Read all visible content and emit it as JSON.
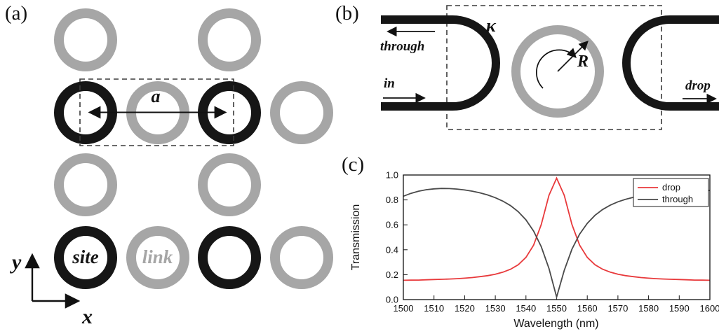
{
  "figure": {
    "panel_a_tag": "(a)",
    "panel_b_tag": "(b)",
    "panel_c_tag": "(c)"
  },
  "panel_a": {
    "lattice_constant_label": "a",
    "x_axis_label": "x",
    "y_axis_label": "y",
    "site_label": "site",
    "link_label": "link",
    "colors": {
      "site": "#161616",
      "link": "#a6a6a6"
    },
    "rings": [
      {
        "col": 0,
        "row": 0,
        "type": "link"
      },
      {
        "col": 2,
        "row": 0,
        "type": "link"
      },
      {
        "col": 0,
        "row": 1,
        "type": "site"
      },
      {
        "col": 1,
        "row": 1,
        "type": "link"
      },
      {
        "col": 2,
        "row": 1,
        "type": "site"
      },
      {
        "col": 3,
        "row": 1,
        "type": "link"
      },
      {
        "col": 0,
        "row": 2,
        "type": "link"
      },
      {
        "col": 2,
        "row": 2,
        "type": "link"
      },
      {
        "col": 0,
        "row": 3,
        "type": "site",
        "label": "site"
      },
      {
        "col": 1,
        "row": 3,
        "type": "link",
        "label": "link"
      },
      {
        "col": 2,
        "row": 3,
        "type": "site"
      },
      {
        "col": 3,
        "row": 3,
        "type": "link"
      }
    ]
  },
  "panel_b": {
    "through_label": "through",
    "in_label": "in",
    "drop_label": "drop",
    "kappa_label": "κ",
    "radius_label": "R",
    "waveguide_color": "#161616",
    "ring_color": "#a6a6a6"
  },
  "chart_data": {
    "type": "line",
    "title": "",
    "xlabel": "Wavelength (nm)",
    "ylabel": "Transmission",
    "xlim": [
      1500,
      1600
    ],
    "ylim": [
      0.0,
      1.0
    ],
    "grid": false,
    "legend_position": "top-right",
    "x_ticks": [
      1500,
      1510,
      1520,
      1530,
      1540,
      1550,
      1560,
      1570,
      1580,
      1590,
      1600
    ],
    "y_ticks": [
      "0.0",
      "0.2",
      "0.4",
      "0.6",
      "0.8",
      "1.0"
    ],
    "x": [
      1500,
      1502.5,
      1505,
      1507.5,
      1510,
      1512.5,
      1515,
      1517.5,
      1520,
      1522.5,
      1525,
      1527.5,
      1530,
      1532.5,
      1535,
      1537.5,
      1540,
      1542.5,
      1545,
      1547.5,
      1550,
      1552.5,
      1555,
      1557.5,
      1560,
      1562.5,
      1565,
      1567.5,
      1570,
      1572.5,
      1575,
      1577.5,
      1580,
      1582.5,
      1585,
      1587.5,
      1590,
      1592.5,
      1595,
      1597.5,
      1600
    ],
    "series": [
      {
        "name": "drop",
        "color": "#e8393b",
        "values": [
          0.155,
          0.156,
          0.157,
          0.159,
          0.161,
          0.163,
          0.165,
          0.168,
          0.172,
          0.177,
          0.184,
          0.192,
          0.204,
          0.22,
          0.244,
          0.28,
          0.339,
          0.437,
          0.602,
          0.837,
          0.975,
          0.837,
          0.602,
          0.437,
          0.339,
          0.28,
          0.244,
          0.22,
          0.204,
          0.192,
          0.184,
          0.177,
          0.172,
          0.168,
          0.165,
          0.163,
          0.161,
          0.159,
          0.157,
          0.156,
          0.155
        ]
      },
      {
        "name": "through",
        "color": "#4a4a4a",
        "values": [
          0.83,
          0.853,
          0.87,
          0.882,
          0.889,
          0.892,
          0.891,
          0.887,
          0.88,
          0.87,
          0.857,
          0.84,
          0.818,
          0.79,
          0.754,
          0.705,
          0.64,
          0.55,
          0.425,
          0.25,
          0.02,
          0.235,
          0.405,
          0.525,
          0.612,
          0.676,
          0.723,
          0.758,
          0.785,
          0.805,
          0.821,
          0.833,
          0.843,
          0.851,
          0.857,
          0.862,
          0.866,
          0.869,
          0.872,
          0.874,
          0.876
        ]
      }
    ]
  }
}
